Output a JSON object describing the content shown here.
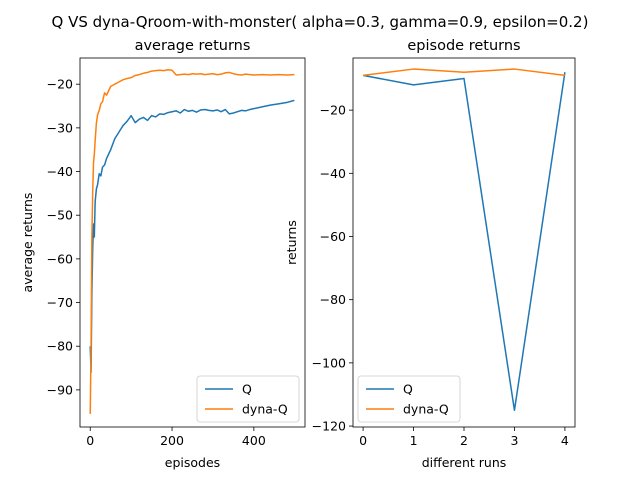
{
  "suptitle": "Q VS dyna-Qroom-with-monster( alpha=0.3, gamma=0.9, epsilon=0.2)",
  "colors": {
    "Q": "#1f77b4",
    "dyna-Q": "#ff7f0e"
  },
  "chart_data": [
    {
      "type": "line",
      "title": "average returns",
      "xlabel": "episodes",
      "ylabel": "average returns",
      "xlim": [
        -25,
        525
      ],
      "ylim": [
        -98.5,
        -14.0
      ],
      "xticks": [
        0,
        200,
        400
      ],
      "xtick_labels": [
        "0",
        "200",
        "400"
      ],
      "yticks": [
        -90,
        -80,
        -70,
        -60,
        -50,
        -40,
        -30,
        -20
      ],
      "ytick_labels": [
        "−90",
        "−80",
        "−70",
        "−60",
        "−50",
        "−40",
        "−30",
        "−20"
      ],
      "legend": "lower right",
      "grid": false,
      "series": [
        {
          "name": "Q",
          "x": [
            0,
            2,
            4,
            6,
            8,
            10,
            12,
            15,
            18,
            22,
            26,
            30,
            35,
            40,
            50,
            60,
            70,
            80,
            90,
            100,
            110,
            120,
            130,
            140,
            150,
            160,
            170,
            180,
            190,
            200,
            210,
            220,
            230,
            240,
            250,
            260,
            270,
            280,
            290,
            300,
            310,
            320,
            330,
            340,
            350,
            360,
            370,
            380,
            390,
            400,
            420,
            440,
            460,
            480,
            499
          ],
          "values": [
            -80.0,
            -86.0,
            -68.0,
            -58.0,
            -52.0,
            -55.0,
            -47.0,
            -44.0,
            -43.0,
            -40.5,
            -41.0,
            -39.0,
            -38.5,
            -37.0,
            -35.0,
            -32.5,
            -31.0,
            -29.5,
            -28.5,
            -27.2,
            -28.8,
            -28.0,
            -27.6,
            -28.3,
            -27.2,
            -27.5,
            -26.8,
            -26.9,
            -26.5,
            -26.3,
            -26.1,
            -26.6,
            -25.8,
            -26.2,
            -26.0,
            -26.4,
            -25.9,
            -25.8,
            -26.0,
            -26.1,
            -25.9,
            -26.3,
            -25.8,
            -26.8,
            -26.6,
            -26.3,
            -26.0,
            -26.1,
            -25.8,
            -25.6,
            -25.2,
            -24.8,
            -24.5,
            -24.2,
            -23.7
          ]
        },
        {
          "name": "dyna-Q",
          "x": [
            0,
            2,
            4,
            6,
            8,
            10,
            12,
            15,
            18,
            22,
            26,
            30,
            35,
            40,
            50,
            60,
            70,
            80,
            90,
            100,
            110,
            120,
            130,
            140,
            150,
            160,
            170,
            180,
            190,
            200,
            210,
            220,
            230,
            240,
            250,
            260,
            270,
            280,
            290,
            300,
            310,
            320,
            330,
            340,
            350,
            360,
            370,
            380,
            390,
            400,
            420,
            440,
            460,
            480,
            499
          ],
          "values": [
            -95.5,
            -80.0,
            -55.0,
            -45.0,
            -38.0,
            -36.0,
            -33.0,
            -29.0,
            -27.0,
            -26.0,
            -24.5,
            -24.0,
            -22.0,
            -22.5,
            -20.5,
            -20.0,
            -19.5,
            -19.0,
            -18.7,
            -18.5,
            -18.0,
            -17.8,
            -17.5,
            -17.3,
            -17.0,
            -16.9,
            -16.8,
            -16.9,
            -16.7,
            -16.8,
            -17.9,
            -17.8,
            -17.7,
            -17.8,
            -17.6,
            -17.7,
            -17.6,
            -17.8,
            -17.7,
            -17.6,
            -17.8,
            -17.7,
            -17.4,
            -17.3,
            -17.6,
            -17.8,
            -17.9,
            -17.7,
            -17.8,
            -17.9,
            -17.8,
            -17.9,
            -17.8,
            -17.9,
            -17.8
          ]
        }
      ]
    },
    {
      "type": "line",
      "title": "episode returns",
      "xlabel": "different runs",
      "ylabel": "returns",
      "xlim": [
        -0.2,
        4.2
      ],
      "ylim": [
        -120.3,
        -3.5
      ],
      "xticks": [
        0,
        1,
        2,
        3,
        4
      ],
      "xtick_labels": [
        "0",
        "1",
        "2",
        "3",
        "4"
      ],
      "yticks": [
        -120,
        -100,
        -80,
        -60,
        -40,
        -20
      ],
      "ytick_labels": [
        "−120",
        "−100",
        "−80",
        "−60",
        "−40",
        "−20"
      ],
      "legend": "lower left",
      "grid": false,
      "series": [
        {
          "name": "Q",
          "x": [
            0,
            1,
            2,
            3,
            4
          ],
          "values": [
            -9,
            -12,
            -10,
            -115,
            -8
          ]
        },
        {
          "name": "dyna-Q",
          "x": [
            0,
            1,
            2,
            3,
            4
          ],
          "values": [
            -9,
            -7,
            -8,
            -7,
            -9
          ]
        }
      ]
    }
  ]
}
